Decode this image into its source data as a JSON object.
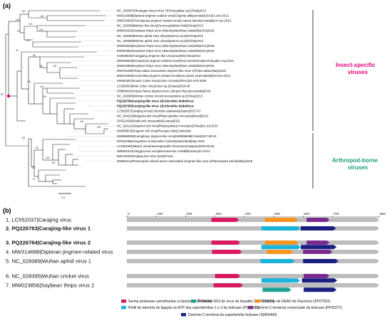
{
  "panel_a": "(a)",
  "panel_b": "(b)",
  "tree_scale": "0.3",
  "groups": [
    {
      "label_lines": [
        "Insect-specific",
        "viruses"
      ],
      "color": "#e5007e"
    },
    {
      "label_lines": [
        "Arthropod-borne",
        "viruses"
      ],
      "color": "#1a9e77"
    }
  ],
  "leaves": [
    {
      "text": "NC_028397|Shuangao insect virus 7|Chrysopidae sp.|China|2013",
      "bold": false
    },
    {
      "text": "MW314688|Dipteran jingmen-related virus|Clogmia albipunctata|USA|01-Jun-2012",
      "bold": false
    },
    {
      "text": "MW314692|Trichopteran jingmen-related virus|Costora delora|Australia|14-Apr-2013",
      "bold": false
    },
    {
      "text": "NC_028399|Wuhan flea virus|Ctenocephalides felis|China|2013",
      "bold": false
    },
    {
      "text": "MW033626|Soybean thrips virus 4|Neohydatothrips variabilis|USA|2018",
      "bold": false
    },
    {
      "text": "NC_028383|Wuhan aphid virus 2|Hyalopterus pruni|China|2013",
      "bold": false
    },
    {
      "text": "NC_028389|Wuhan aphid virus 1|Hyalopterus pruni|China|2013",
      "bold": false
    },
    {
      "text": "MW033630|Soybean thrips virus 3|Neohydatothrips variabilis|USA|2018",
      "bold": false
    },
    {
      "text": "MW033852|Soybean thrips virus 1|Neohydatothrips variabilis|USA|2018",
      "bold": false
    },
    {
      "text": "KX883003|Changjiang Jingmen-like virus|crayfish|China|2014",
      "bold": false
    },
    {
      "text": "MW208803|Hemipteran jingmen-related virus|Plea minutissima|Germany|01-Aug-2011",
      "bold": false
    },
    {
      "text": "MW023856|Soybean thrips virus 2|Neohydatothrips variabilis|USA|2018",
      "bold": false
    },
    {
      "text": "MN764159|Thrips tabaci associated Jingmen-like virus 1|Thrips tabaci|Italy|2018",
      "bold": false
    },
    {
      "text": "MW314685|Arachnidan jingmen-related virus|Euscorpius sicanus|Italy|03-Nov-2012",
      "bold": false
    },
    {
      "text": "KM461667|Guaico Culex virus|Culex coronator|Peru|21-Feb-2009",
      "bold": false
    },
    {
      "text": "LC505053|Mole Culex virus|Culex sp.|Ghana|2016-08",
      "bold": false
    },
    {
      "text": "OM869461|Inopus flavus jingmenvirus 1|Inopus flavus|Australia|2019",
      "bold": false
    },
    {
      "text": "NC_028395|Wuhan cricket virus|Conocephalus sp.|China|2013",
      "bold": false
    },
    {
      "text": "PQ226784|Carajing-like virus 2|Culicoides diabolicus",
      "bold": true
    },
    {
      "text": "PQ226783|Carajing-like virus 1|Culicoides diabolicus",
      "bold": true
    },
    {
      "text": "LC552037|Carajing virus|Culicoides arakawae|Japan|2017-07",
      "bold": false
    },
    {
      "text": "NC_034223|Mogiana tick virus|Rhipicephalus microplus|Brazil|2011",
      "bold": false
    },
    {
      "text": "OP612429|Kindia tick virus|cattle|Guinea|2022",
      "bold": false
    },
    {
      "text": "NC_024114|Jingmen tick virus|Rhipicephalus microplus|China|01-Jul-2010",
      "bold": false
    },
    {
      "text": "MN095533|Jingmen tick virus|Pteropus lylei|Cambodia",
      "bold": false
    },
    {
      "text": "MW896895|Guangdong Jingmen-like virus|MW896895|China|2017-08-04",
      "bold": false
    },
    {
      "text": "OP921098|Alongshan virus|Ixodes ricinus|Switzerland|May-2022",
      "bold": false
    },
    {
      "text": "LC628198|Takachi virus|Haemaphysalis formosensis|Japan|2020-05-06",
      "bold": false
    },
    {
      "text": "MW525324|Yanggou tick virus|Dermacentor nuttalli|Russia|Jun-2014",
      "bold": false
    },
    {
      "text": "MZ244282|Xinjiang tick virus 1|tick|China",
      "bold": false
    },
    {
      "text": "MN551114|Plasmopara viticola lesion associated Jingman-like virus 1|Plasmopara viticola|Italy|2018",
      "bold": false
    }
  ],
  "bootstrap": [
    "100",
    "100",
    "100",
    "100",
    "100",
    "91",
    "100",
    "99",
    "98",
    "99",
    "100",
    "100",
    "100",
    "100",
    "95",
    "100",
    "100",
    "100",
    "95",
    "100",
    "100",
    "100",
    "97"
  ],
  "ruler_ticks": [
    "0",
    "100",
    "200",
    "300",
    "400",
    "500",
    "600",
    "700",
    "859"
  ],
  "ruler_max": 859,
  "sequences": [
    {
      "label": "1. LC552037|Carajing virus",
      "bold": false,
      "domains": [
        {
          "type": "serina",
          "start": 288,
          "end": 382
        },
        {
          "type": "dead",
          "start": 470,
          "end": 582
        },
        {
          "type": "cterm",
          "start": 612,
          "end": 690
        }
      ]
    },
    {
      "label": "2. PQ226783|Carajing-like virus 1",
      "bold": true,
      "domains": [
        {
          "type": "atp",
          "start": 458,
          "end": 590
        },
        {
          "type": "superfam",
          "start": 592,
          "end": 712
        }
      ]
    },
    {
      "label": "3. PQ226784|Carajing-like virus 2",
      "bold": true,
      "domains": [
        {
          "type": "serina",
          "start": 288,
          "end": 386
        },
        {
          "type": "dead",
          "start": 470,
          "end": 584
        },
        {
          "type": "cterm",
          "start": 612,
          "end": 690
        },
        {
          "type": "atp",
          "start": 458,
          "end": 592
        },
        {
          "type": "superfam",
          "start": 592,
          "end": 714
        }
      ]
    },
    {
      "label": "4. MW314688|Dipteran jingmen-related virus",
      "bold": false,
      "domains": [
        {
          "type": "serina",
          "start": 290,
          "end": 392
        },
        {
          "type": "dead",
          "start": 476,
          "end": 566
        },
        {
          "type": "cterm",
          "start": 600,
          "end": 700
        }
      ]
    },
    {
      "label": "5. NC_028389|Wuhan aphid virus 1",
      "bold": false,
      "domains": [
        {
          "type": "atp",
          "start": 455,
          "end": 572
        },
        {
          "type": "superfam",
          "start": 600,
          "end": 720
        }
      ]
    },
    {
      "label": "6. NC_028395|Wuhan cricket virus",
      "bold": false,
      "domains": [
        {
          "type": "serina",
          "start": 300,
          "end": 386
        },
        {
          "type": "ns3",
          "start": 470,
          "end": 566
        },
        {
          "type": "cterm",
          "start": 602,
          "end": 690
        },
        {
          "type": "atp",
          "start": 458,
          "end": 590
        },
        {
          "type": "superfam",
          "start": 596,
          "end": 716
        }
      ]
    },
    {
      "label": "7. MW023856|Soybean thrips virus 2",
      "bold": false,
      "domains": [
        {
          "type": "serina",
          "start": 295,
          "end": 395
        },
        {
          "type": "ns3",
          "start": 462,
          "end": 560
        },
        {
          "type": "superfam",
          "start": 602,
          "end": 714
        }
      ]
    }
  ],
  "domain_colors": {
    "serina": "#d81b60",
    "ns3": "#1fa293",
    "dead": "#f7941d",
    "atp": "#1bb3d9",
    "cterm": "#7b2a8f",
    "superfam": "#1a1f80"
  },
  "legend": [
    {
      "type": "serina",
      "text": "Serina proteases semelhantes à tripsina (SSF50494)"
    },
    {
      "type": "ns3",
      "text": "Protease NS3 do vírus da hepatite C (PF02907)"
    },
    {
      "type": "dead",
      "text": "Domínio de DEAD de Flavivírus (PF07652)"
    },
    {
      "type": "atp",
      "text": "Perfil do domínio de ligação ao ATP das superfamílias 1 e 2 da helicase (PS51192)"
    },
    {
      "type": "cterm",
      "text": "Domínio C-terminal conservado da helicase (PF00271)"
    },
    {
      "type": "superfam",
      "text": "Domínio C-terminal da superfamília helicase (SM00490)"
    }
  ]
}
